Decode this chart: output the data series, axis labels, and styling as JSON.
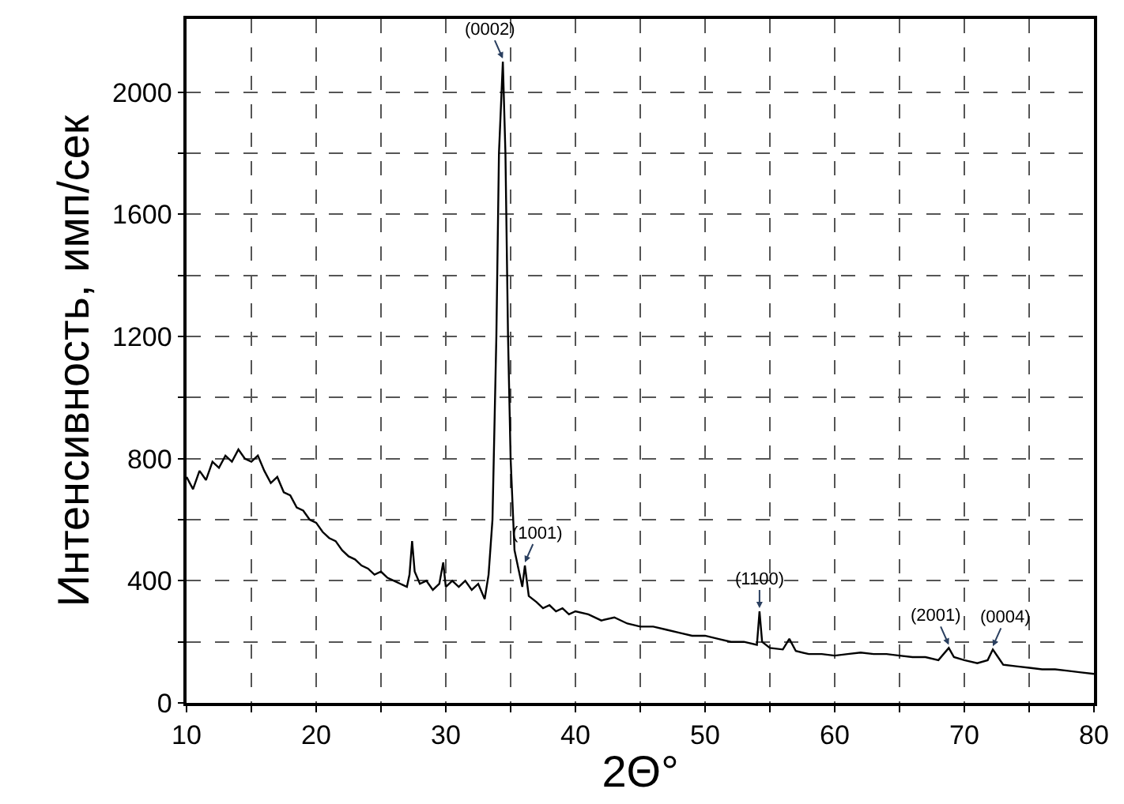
{
  "chart_data": {
    "type": "line",
    "xlabel": "2Θ°",
    "ylabel": "Интенсивность, имп/сек",
    "x": [
      10,
      10.5,
      11,
      11.5,
      12,
      12.5,
      13,
      13.5,
      14,
      14.5,
      15,
      15.5,
      16,
      16.5,
      17,
      17.5,
      18,
      18.5,
      19,
      19.5,
      20,
      20.5,
      21,
      21.5,
      22,
      22.5,
      23,
      23.5,
      24,
      24.5,
      25,
      25.5,
      26,
      26.5,
      27,
      27.2,
      27.4,
      27.6,
      28,
      28.5,
      29,
      29.5,
      29.8,
      30,
      30.5,
      31,
      31.5,
      32,
      32.5,
      33,
      33.3,
      33.6,
      33.9,
      34.1,
      34.3,
      34.4,
      34.6,
      34.8,
      35,
      35.3,
      35.6,
      35.9,
      36.1,
      36.4,
      37,
      37.5,
      38,
      38.5,
      39,
      39.5,
      40,
      41,
      42,
      43,
      44,
      45,
      46,
      47,
      48,
      49,
      50,
      51,
      52,
      53,
      54,
      54.2,
      54.4,
      55,
      56,
      56.5,
      57,
      58,
      59,
      60,
      61,
      62,
      63,
      64,
      65,
      66,
      67,
      68,
      68.8,
      69.2,
      70,
      71,
      71.8,
      72.2,
      72.6,
      73,
      74,
      75,
      76,
      77,
      78,
      79,
      80
    ],
    "series": [
      {
        "color": "#000000",
        "values": [
          740,
          700,
          760,
          730,
          790,
          770,
          810,
          790,
          830,
          800,
          790,
          810,
          760,
          720,
          740,
          690,
          680,
          640,
          630,
          600,
          590,
          560,
          540,
          530,
          500,
          480,
          470,
          450,
          440,
          420,
          430,
          410,
          400,
          390,
          380,
          420,
          530,
          430,
          390,
          400,
          370,
          390,
          460,
          380,
          400,
          380,
          400,
          370,
          390,
          340,
          420,
          600,
          1200,
          1800,
          2000,
          2100,
          1800,
          1200,
          800,
          500,
          440,
          380,
          450,
          350,
          330,
          310,
          320,
          300,
          310,
          290,
          300,
          290,
          270,
          280,
          260,
          250,
          250,
          240,
          230,
          220,
          220,
          210,
          200,
          200,
          190,
          300,
          200,
          180,
          175,
          210,
          170,
          160,
          160,
          155,
          160,
          165,
          160,
          160,
          155,
          150,
          150,
          140,
          180,
          150,
          140,
          130,
          140,
          175,
          150,
          125,
          120,
          115,
          110,
          110,
          105,
          100,
          95
        ]
      }
    ],
    "xlim": [
      10,
      80
    ],
    "xticks": [
      10,
      {
        "value": 15,
        "label": null
      },
      20,
      {
        "value": 25,
        "label": null
      },
      30,
      {
        "value": 35,
        "label": null
      },
      40,
      {
        "value": 45,
        "label": null
      },
      50,
      {
        "value": 55,
        "label": null
      },
      60,
      {
        "value": 65,
        "label": null
      },
      70,
      {
        "value": 75,
        "label": null
      },
      80
    ],
    "ylim": [
      0,
      2240
    ],
    "yticks": [
      0,
      {
        "value": 200,
        "label": null
      },
      400,
      {
        "value": 600,
        "label": null
      },
      800,
      {
        "value": 1000,
        "label": null
      },
      1200,
      {
        "value": 1400,
        "label": null
      },
      1600,
      {
        "value": 1800,
        "label": null
      },
      2000
    ],
    "grid": true,
    "line_style": "solid",
    "marker": "none",
    "annotations": [
      {
        "text": "(0002)",
        "x": 34.4,
        "y": 2100
      },
      {
        "text": "(1001)",
        "x": 36.1,
        "y": 450
      },
      {
        "text": "(1100)",
        "x": 54.2,
        "y": 300
      },
      {
        "text": "(2001)",
        "x": 68.8,
        "y": 180
      },
      {
        "text": "(0004)",
        "x": 72.2,
        "y": 175
      }
    ]
  }
}
